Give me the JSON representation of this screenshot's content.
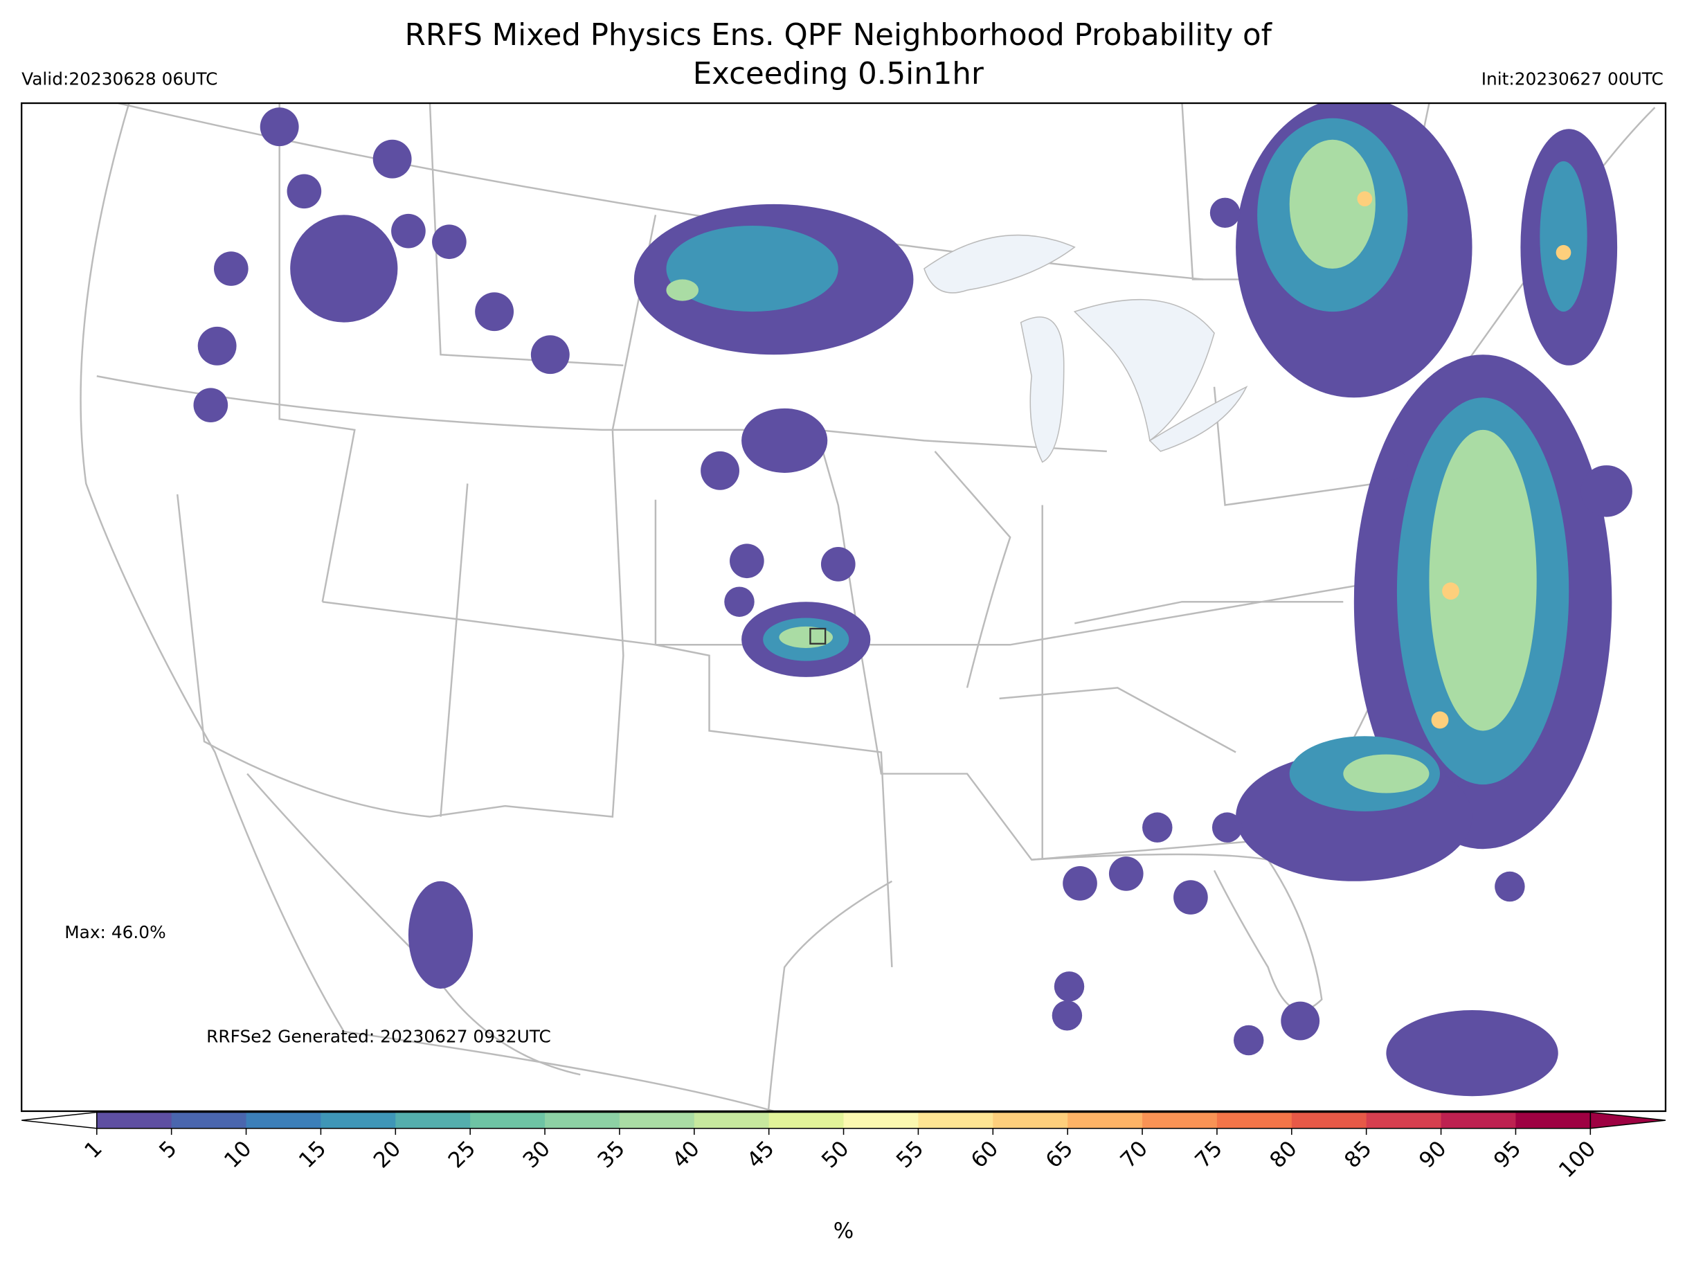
{
  "header": {
    "title_lines": [
      "RRFS Mixed Physics Ens. QPF Neighborhood Probability of",
      "Exceeding 0.5in1hr"
    ],
    "valid": "Valid:20230628 06UTC",
    "init": "Init:20230627 00UTC"
  },
  "annotations": {
    "max": "Max: 46.0%",
    "generated": "RRFSe2 Generated: 20230627 0932UTC"
  },
  "colorbar": {
    "label": "%",
    "ticks": [
      1,
      5,
      10,
      15,
      20,
      25,
      30,
      35,
      40,
      45,
      50,
      55,
      60,
      65,
      70,
      75,
      80,
      85,
      90,
      95,
      100
    ],
    "colors": [
      "#5e4fa2",
      "#4a66ae",
      "#3c7fb9",
      "#3f96b7",
      "#54aead",
      "#6ec4a4",
      "#8dd1a4",
      "#aadca4",
      "#c7e89e",
      "#e2f399",
      "#fbf8b0",
      "#fee593",
      "#fdcf7c",
      "#fdb366",
      "#f99355",
      "#f47548",
      "#e75947",
      "#d63f4f",
      "#bd2150",
      "#9e0142"
    ],
    "extend_under_color": "#ffffff",
    "extend_over_color": "#9e0142"
  }
}
